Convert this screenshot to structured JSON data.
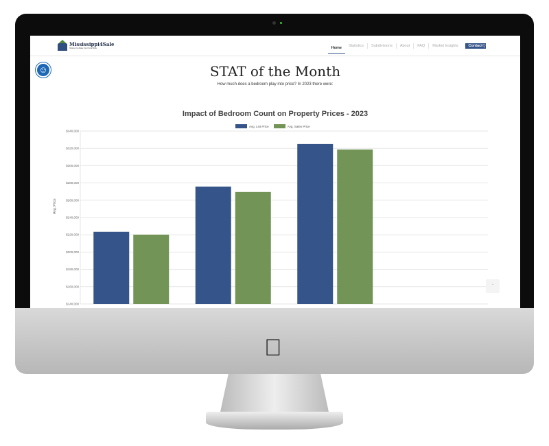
{
  "header": {
    "logo_name": "Mississippi4Sale",
    "logo_tagline": "Helping You Make Your Home Move",
    "nav": [
      "Home",
      "Statistics",
      "Subdivisions",
      "About",
      "FAQ",
      "Market Insights"
    ],
    "contact_label": "Contact",
    "search_icon": "search-icon"
  },
  "page": {
    "title": "STAT of the Month",
    "subtitle": "How much does a bedroom play into price? In 2023 there were:"
  },
  "accessibility_icon": "accessibility-icon",
  "scroll_top_icon": "chevron-up-icon",
  "colors": {
    "list": "#35558a",
    "sales": "#729457",
    "accent": "#35558a"
  },
  "chart_data": {
    "type": "bar",
    "title": "Impact of Bedroom Count on Property Prices - 2023",
    "ylabel": "Avg. Price",
    "ylim": [
      140000,
      340000
    ],
    "yticks": [
      "$340,000",
      "$320,000",
      "$300,000",
      "$280,000",
      "$260,000",
      "$240,000",
      "$220,000",
      "$200,000",
      "$180,000",
      "$160,000",
      "$140,000"
    ],
    "legend": "top",
    "grid": true,
    "series": [
      {
        "name": "Avg. List Price",
        "values": [
          223500,
          275800,
          325000
        ]
      },
      {
        "name": "Avg. Sales Price",
        "values": [
          220200,
          269500,
          318700
        ]
      }
    ]
  }
}
